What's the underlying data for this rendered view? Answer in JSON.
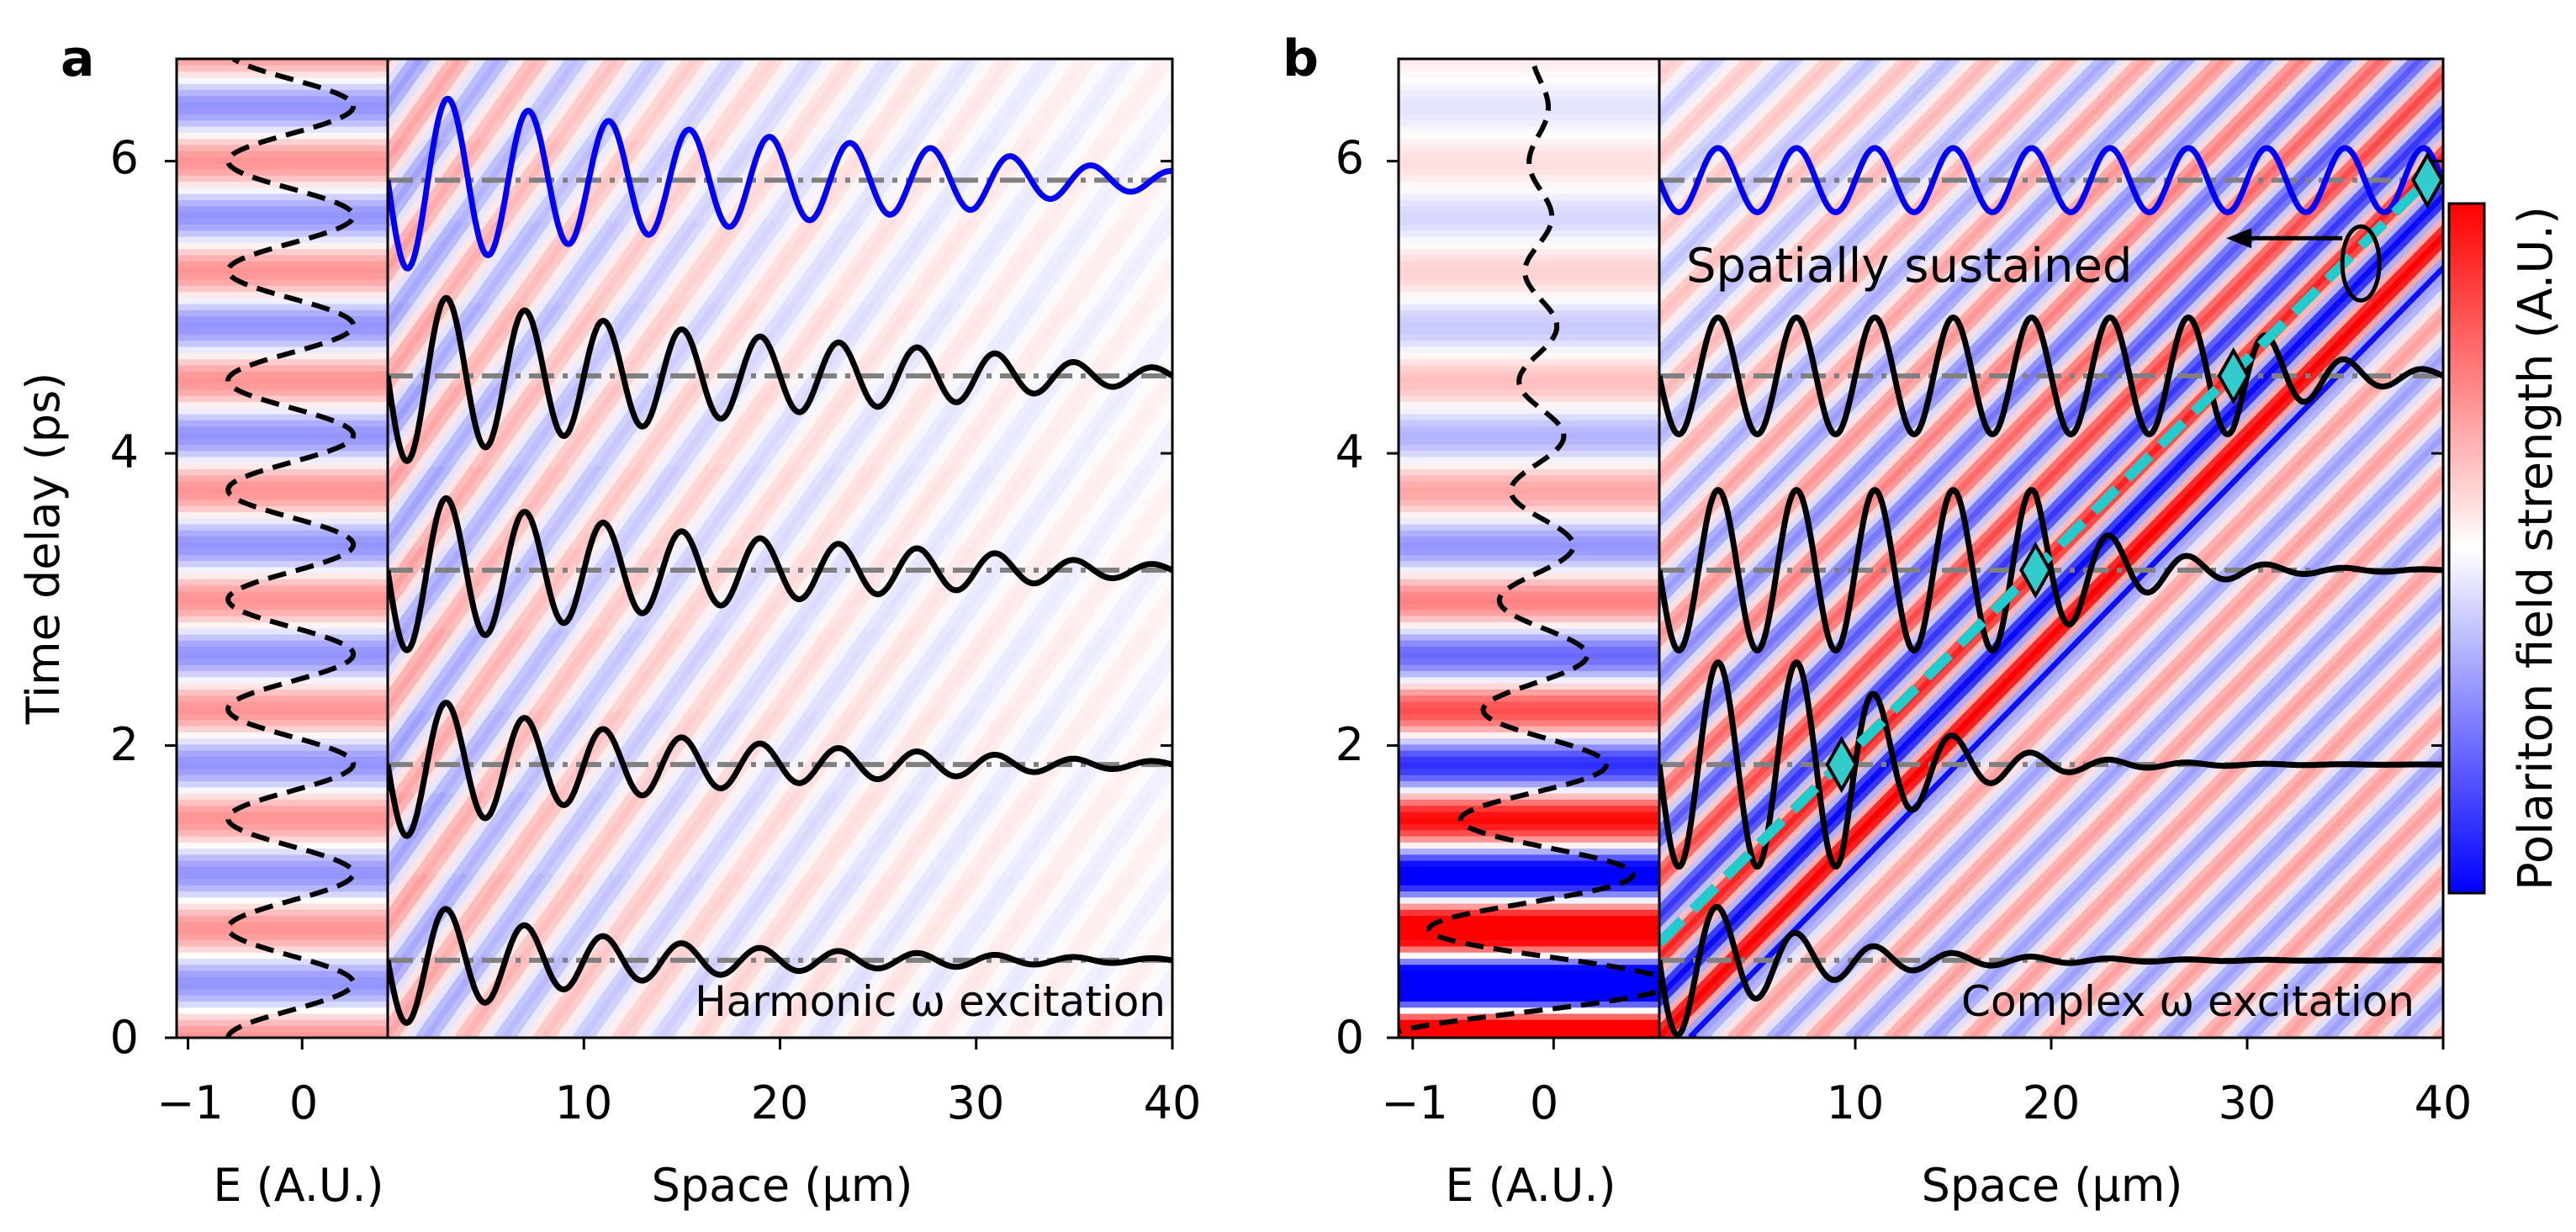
{
  "figure": {
    "colorbar_label": "Polariton field strength (A.U.)",
    "colormap": [
      "#0000ff",
      "#ffffff",
      "#ff0000"
    ]
  },
  "chart_data": [
    {
      "type": "heatmap",
      "panel_label": "a",
      "title": "Harmonic ω excitation",
      "ylabel": "Time delay (ps)",
      "ylim": [
        0,
        6.7
      ],
      "yticks": [
        "0",
        "2",
        "4",
        "6"
      ],
      "left_axis": {
        "xlabel": "E (A.U.)",
        "xlim": [
          -1.1,
          0.75
        ],
        "xticks": [
          "−1",
          "0"
        ]
      },
      "main_axis": {
        "xlabel": "Space (μm)",
        "xlim": [
          0,
          40
        ],
        "xticks": [
          "10",
          "20",
          "30",
          "40"
        ]
      },
      "driving_field": {
        "style": "dashed",
        "color": "#000000",
        "amplitude": 0.55,
        "offset": -0.1,
        "period_ps": 0.75,
        "decay_per_ps": 0
      },
      "field_map": {
        "wavelength_um": 4.0,
        "velocity_um_per_ps": 5.33,
        "decay_um": 22,
        "amplitude_left": 0.38,
        "background_bands": 0.42
      },
      "traces": [
        {
          "baseline_ps": 0.53,
          "color": "#000000",
          "amplitude_ps": 0.45,
          "decay_um": 4.0,
          "wavelength_um": 4.0
        },
        {
          "baseline_ps": 1.87,
          "color": "#000000",
          "amplitude_ps": 0.5,
          "decay_um": 5.5,
          "wavelength_um": 4.0
        },
        {
          "baseline_ps": 3.2,
          "color": "#000000",
          "amplitude_ps": 0.55,
          "decay_um": 7.5,
          "wavelength_um": 4.0
        },
        {
          "baseline_ps": 4.53,
          "color": "#000000",
          "amplitude_ps": 0.58,
          "decay_um": 9.0,
          "wavelength_um": 4.0
        },
        {
          "baseline_ps": 5.87,
          "color": "#0000ff",
          "amplitude_ps": 0.6,
          "decay_um": 10.0,
          "wavelength_um": 4.1
        }
      ],
      "reference_line": {
        "style": "dashdot",
        "color": "#808080"
      }
    },
    {
      "type": "heatmap",
      "panel_label": "b",
      "title": "Complex ω excitation",
      "ylabel": "",
      "ylim": [
        0,
        6.7
      ],
      "yticks": [
        "0",
        "2",
        "4",
        "6"
      ],
      "left_axis": {
        "xlabel": "E (A.U.)",
        "xlim": [
          -1.1,
          0.75
        ],
        "xticks": [
          "−1",
          "0"
        ]
      },
      "main_axis": {
        "xlabel": "Space (μm)",
        "xlim": [
          0,
          40
        ],
        "xticks": [
          "10",
          "20",
          "30",
          "40"
        ]
      },
      "driving_field": {
        "style": "dashed",
        "color": "#000000",
        "amplitude": 1.1,
        "offset": -0.1,
        "period_ps": 0.75,
        "decay_per_ps": 0.45
      },
      "field_map": {
        "wavelength_um": 4.0,
        "velocity_um_per_ps": 7.3,
        "growth_per_ps": 0.45,
        "amplitude_left": 1.0,
        "background_bands": 1.0
      },
      "traces": [
        {
          "baseline_ps": 0.53,
          "color": "#000000",
          "amplitude_ps": 0.6,
          "front_um": 0,
          "wavelength_um": 4.0
        },
        {
          "baseline_ps": 1.87,
          "color": "#000000",
          "amplitude_ps": 0.7,
          "front_um": 9.3,
          "wavelength_um": 4.0
        },
        {
          "baseline_ps": 3.2,
          "color": "#000000",
          "amplitude_ps": 0.55,
          "front_um": 19.2,
          "wavelength_um": 4.0
        },
        {
          "baseline_ps": 4.53,
          "color": "#000000",
          "amplitude_ps": 0.4,
          "front_um": 29.3,
          "wavelength_um": 4.0
        },
        {
          "baseline_ps": 5.87,
          "color": "#0000ff",
          "amplitude_ps": 0.22,
          "front_um": 39.2,
          "wavelength_um": 4.0
        }
      ],
      "reference_line": {
        "style": "dashdot",
        "color": "#808080"
      },
      "front_line": {
        "style": "dashed",
        "color": "#22cccc",
        "points": [
          [
            0,
            0.65
          ],
          [
            39.2,
            5.87
          ]
        ]
      },
      "markers": {
        "shape": "diamond",
        "color": "#33cccc",
        "points": [
          [
            9.3,
            1.87
          ],
          [
            19.2,
            3.2
          ],
          [
            29.3,
            4.53
          ],
          [
            39.2,
            5.87
          ]
        ]
      },
      "annotation": {
        "text": "Spatially sustained",
        "target": [
          35.8,
          5.3
        ]
      }
    }
  ]
}
